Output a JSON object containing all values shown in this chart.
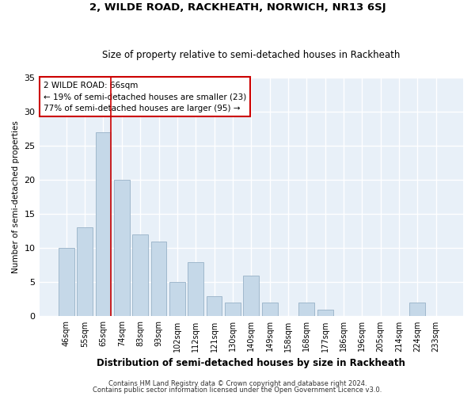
{
  "title1": "2, WILDE ROAD, RACKHEATH, NORWICH, NR13 6SJ",
  "title2": "Size of property relative to semi-detached houses in Rackheath",
  "xlabel": "Distribution of semi-detached houses by size in Rackheath",
  "ylabel": "Number of semi-detached properties",
  "categories": [
    "46sqm",
    "55sqm",
    "65sqm",
    "74sqm",
    "83sqm",
    "93sqm",
    "102sqm",
    "112sqm",
    "121sqm",
    "130sqm",
    "140sqm",
    "149sqm",
    "158sqm",
    "168sqm",
    "177sqm",
    "186sqm",
    "196sqm",
    "205sqm",
    "214sqm",
    "224sqm",
    "233sqm"
  ],
  "values": [
    10,
    13,
    27,
    20,
    12,
    11,
    5,
    8,
    3,
    2,
    6,
    2,
    0,
    2,
    1,
    0,
    0,
    0,
    0,
    2,
    0
  ],
  "bar_color": "#c5d8e8",
  "bar_edgecolor": "#a0b8cc",
  "highlight_index": 2,
  "highlight_line_color": "#cc0000",
  "annotation_line1": "2 WILDE ROAD: 66sqm",
  "annotation_line2": "← 19% of semi-detached houses are smaller (23)",
  "annotation_line3": "77% of semi-detached houses are larger (95) →",
  "annotation_box_color": "#ffffff",
  "annotation_box_edgecolor": "#cc0000",
  "ylim": [
    0,
    35
  ],
  "yticks": [
    0,
    5,
    10,
    15,
    20,
    25,
    30,
    35
  ],
  "background_color": "#e8f0f8",
  "grid_color": "#ffffff",
  "footer1": "Contains HM Land Registry data © Crown copyright and database right 2024.",
  "footer2": "Contains public sector information licensed under the Open Government Licence v3.0."
}
